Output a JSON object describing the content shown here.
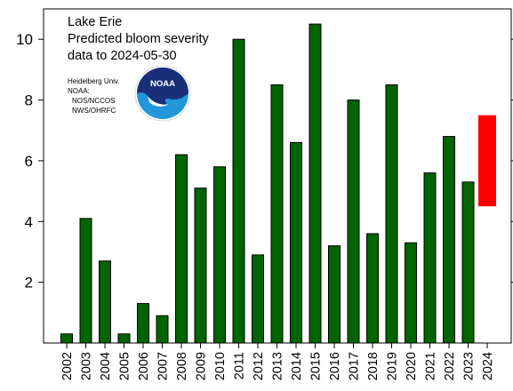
{
  "chart_data": {
    "type": "bar",
    "title_lines": [
      "Lake Erie",
      "Predicted bloom severity",
      "data to 2024-05-30"
    ],
    "credit_lines": [
      "Heidelberg Univ.",
      "NOAA:",
      "NOS/NCCOS",
      "NWS/OHRFC"
    ],
    "logo_text": "NOAA",
    "categories": [
      "2002",
      "2003",
      "2004",
      "2005",
      "2006",
      "2007",
      "2008",
      "2009",
      "2010",
      "2011",
      "2012",
      "2013",
      "2014",
      "2015",
      "2016",
      "2017",
      "2018",
      "2019",
      "2020",
      "2021",
      "2022",
      "2023",
      "2024"
    ],
    "values": [
      0.3,
      4.1,
      2.7,
      0.3,
      1.3,
      0.9,
      6.2,
      5.1,
      5.8,
      10.0,
      2.9,
      8.5,
      6.6,
      10.5,
      3.2,
      8.0,
      3.6,
      8.5,
      3.3,
      5.6,
      6.8,
      5.3,
      null
    ],
    "forecast": {
      "category": "2024",
      "low": 4.5,
      "high": 7.5
    },
    "y_ticks": [
      2,
      4,
      6,
      8,
      10
    ],
    "ylim": [
      0,
      11
    ],
    "xlabel": "",
    "ylabel": "",
    "colors": {
      "bar": "#006400",
      "forecast": "#ff0000",
      "noaa_dark": "#1a2f7a",
      "noaa_light": "#2196d8"
    },
    "grid": false
  }
}
